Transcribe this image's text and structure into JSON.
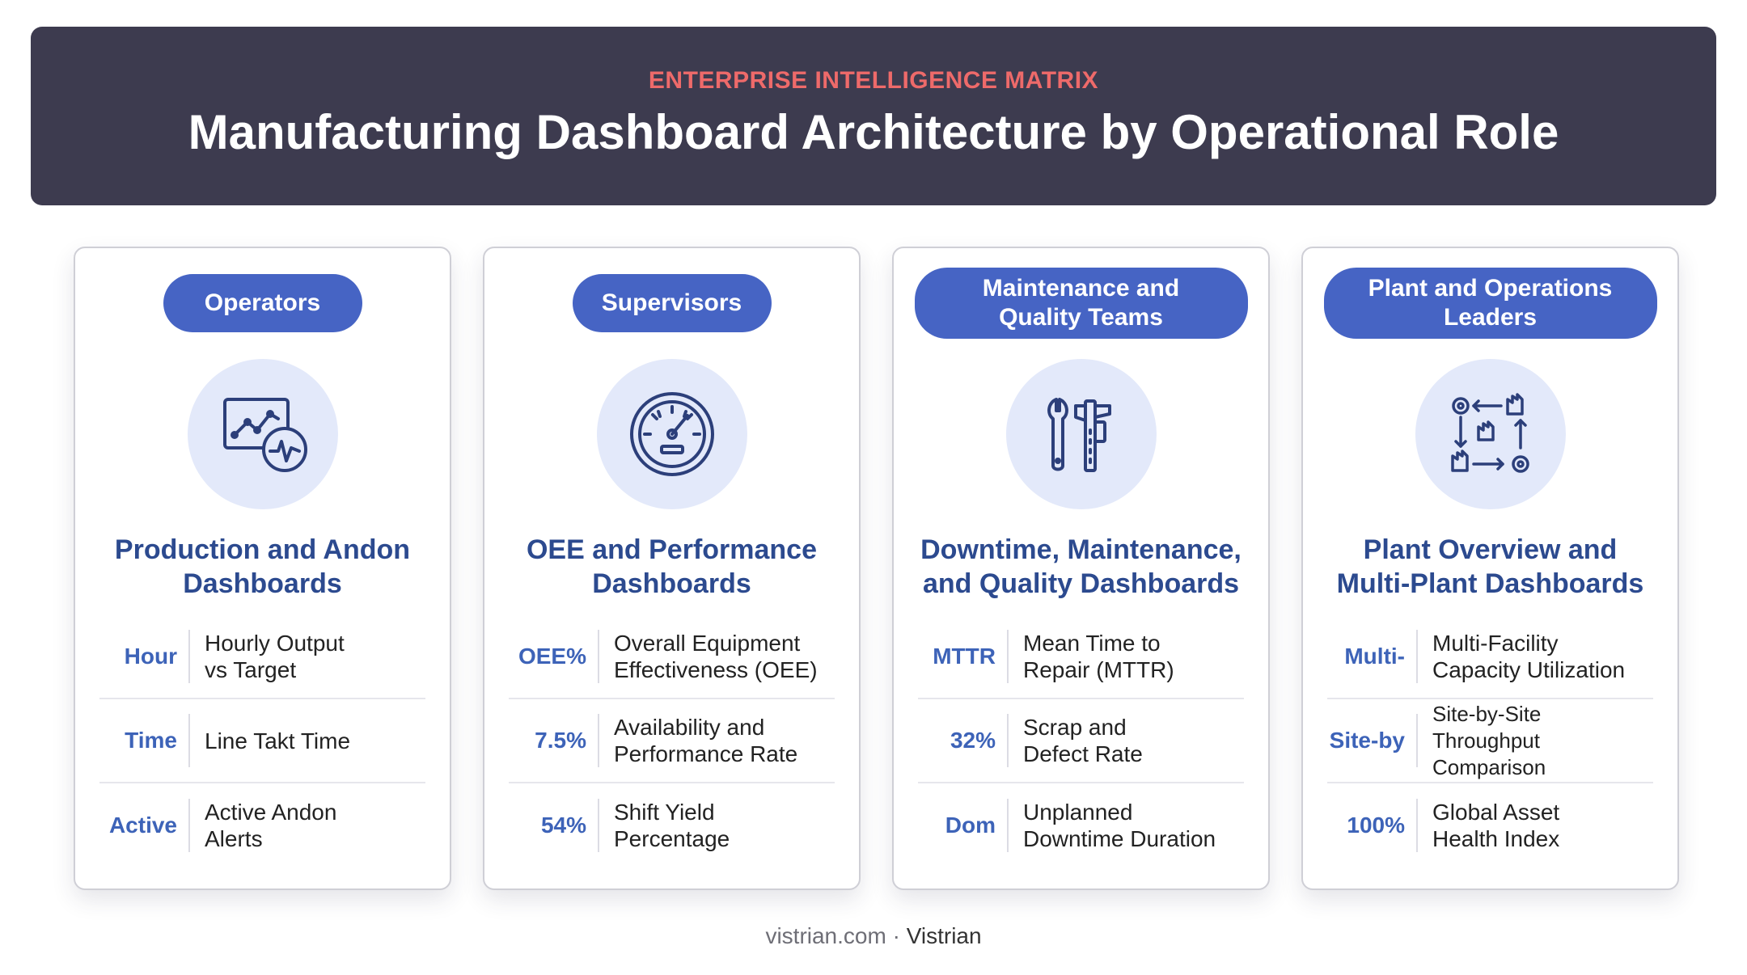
{
  "header": {
    "eyebrow": "ENTERPRISE INTELLIGENCE MATRIX",
    "title": "Manufacturing Dashboard Architecture by Operational Role"
  },
  "cards": [
    {
      "role": "Operators",
      "icon": "trend-chart-pulse-icon",
      "title": "Production and Andon\nDashboards",
      "metrics": [
        {
          "tag": "Hour",
          "label": "Hourly Output\nvs Target"
        },
        {
          "tag": "Time",
          "label": "Line Takt Time"
        },
        {
          "tag": "Active",
          "label": "Active Andon\nAlerts"
        }
      ]
    },
    {
      "role": "Supervisors",
      "icon": "gauge-icon",
      "title": "OEE and Performance\nDashboards",
      "metrics": [
        {
          "tag": "OEE%",
          "label": "Overall Equipment\nEffectiveness (OEE)"
        },
        {
          "tag": "7.5%",
          "label": "Availability and\nPerformance Rate"
        },
        {
          "tag": "54%",
          "label": "Shift Yield\nPercentage"
        }
      ]
    },
    {
      "role": "Maintenance and\nQuality Teams",
      "icon": "wrench-caliper-icon",
      "title": "Downtime, Maintenance,\nand Quality Dashboards",
      "metrics": [
        {
          "tag": "MTTR",
          "label": "Mean Time to\nRepair (MTTR)"
        },
        {
          "tag": "32%",
          "label": "Scrap and\nDefect Rate"
        },
        {
          "tag": "Dom",
          "label": "Unplanned\nDowntime Duration"
        }
      ]
    },
    {
      "role": "Plant and Operations\nLeaders",
      "icon": "multi-plant-network-icon",
      "title": "Plant Overview and\nMulti-Plant Dashboards",
      "metrics": [
        {
          "tag": "Multi-",
          "label": "Multi-Facility\nCapacity Utilization"
        },
        {
          "tag": "Site-by",
          "label": "Site-by-Site\nThroughput Comparison"
        },
        {
          "tag": "100%",
          "label": "Global Asset\nHealth Index"
        }
      ]
    }
  ],
  "footer": {
    "site": "vistrian.com",
    "separator": " · ",
    "brand": "Vistrian"
  }
}
